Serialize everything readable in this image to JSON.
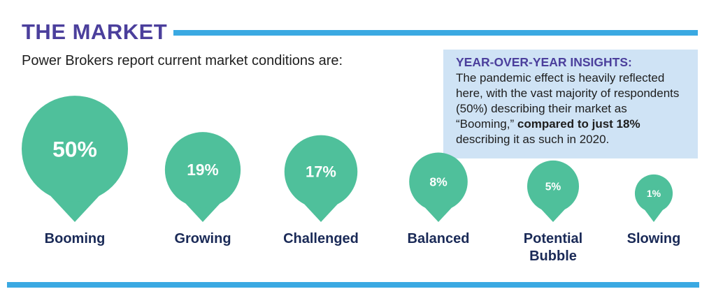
{
  "header": {
    "title": "THE MARKET",
    "subtitle": "Power Brokers report current market conditions are:"
  },
  "insight": {
    "heading": "YEAR-OVER-YEAR INSIGHTS:",
    "text_before": "The pandemic effect is heavily reflected here, with the vast majority of respondents (50%) describing their market as “Booming,” ",
    "text_bold": "compared to just 18%",
    "text_after": " describing it as such in 2020."
  },
  "colors": {
    "bubble": "#4fc09b",
    "label": "#1a2a57",
    "title": "#4b3f9c",
    "rule": "#3aa9e2"
  },
  "chart_data": {
    "type": "bubble",
    "categories": [
      [
        "Booming"
      ],
      [
        "Growing"
      ],
      [
        "Challenged"
      ],
      [
        "Balanced"
      ],
      [
        "Potential",
        "Bubble"
      ],
      [
        "Slowing"
      ]
    ],
    "values": [
      50,
      19,
      17,
      8,
      5,
      1
    ],
    "value_labels": [
      "50%",
      "19%",
      "17%",
      "8%",
      "5%",
      "1%"
    ],
    "unit": "%"
  }
}
